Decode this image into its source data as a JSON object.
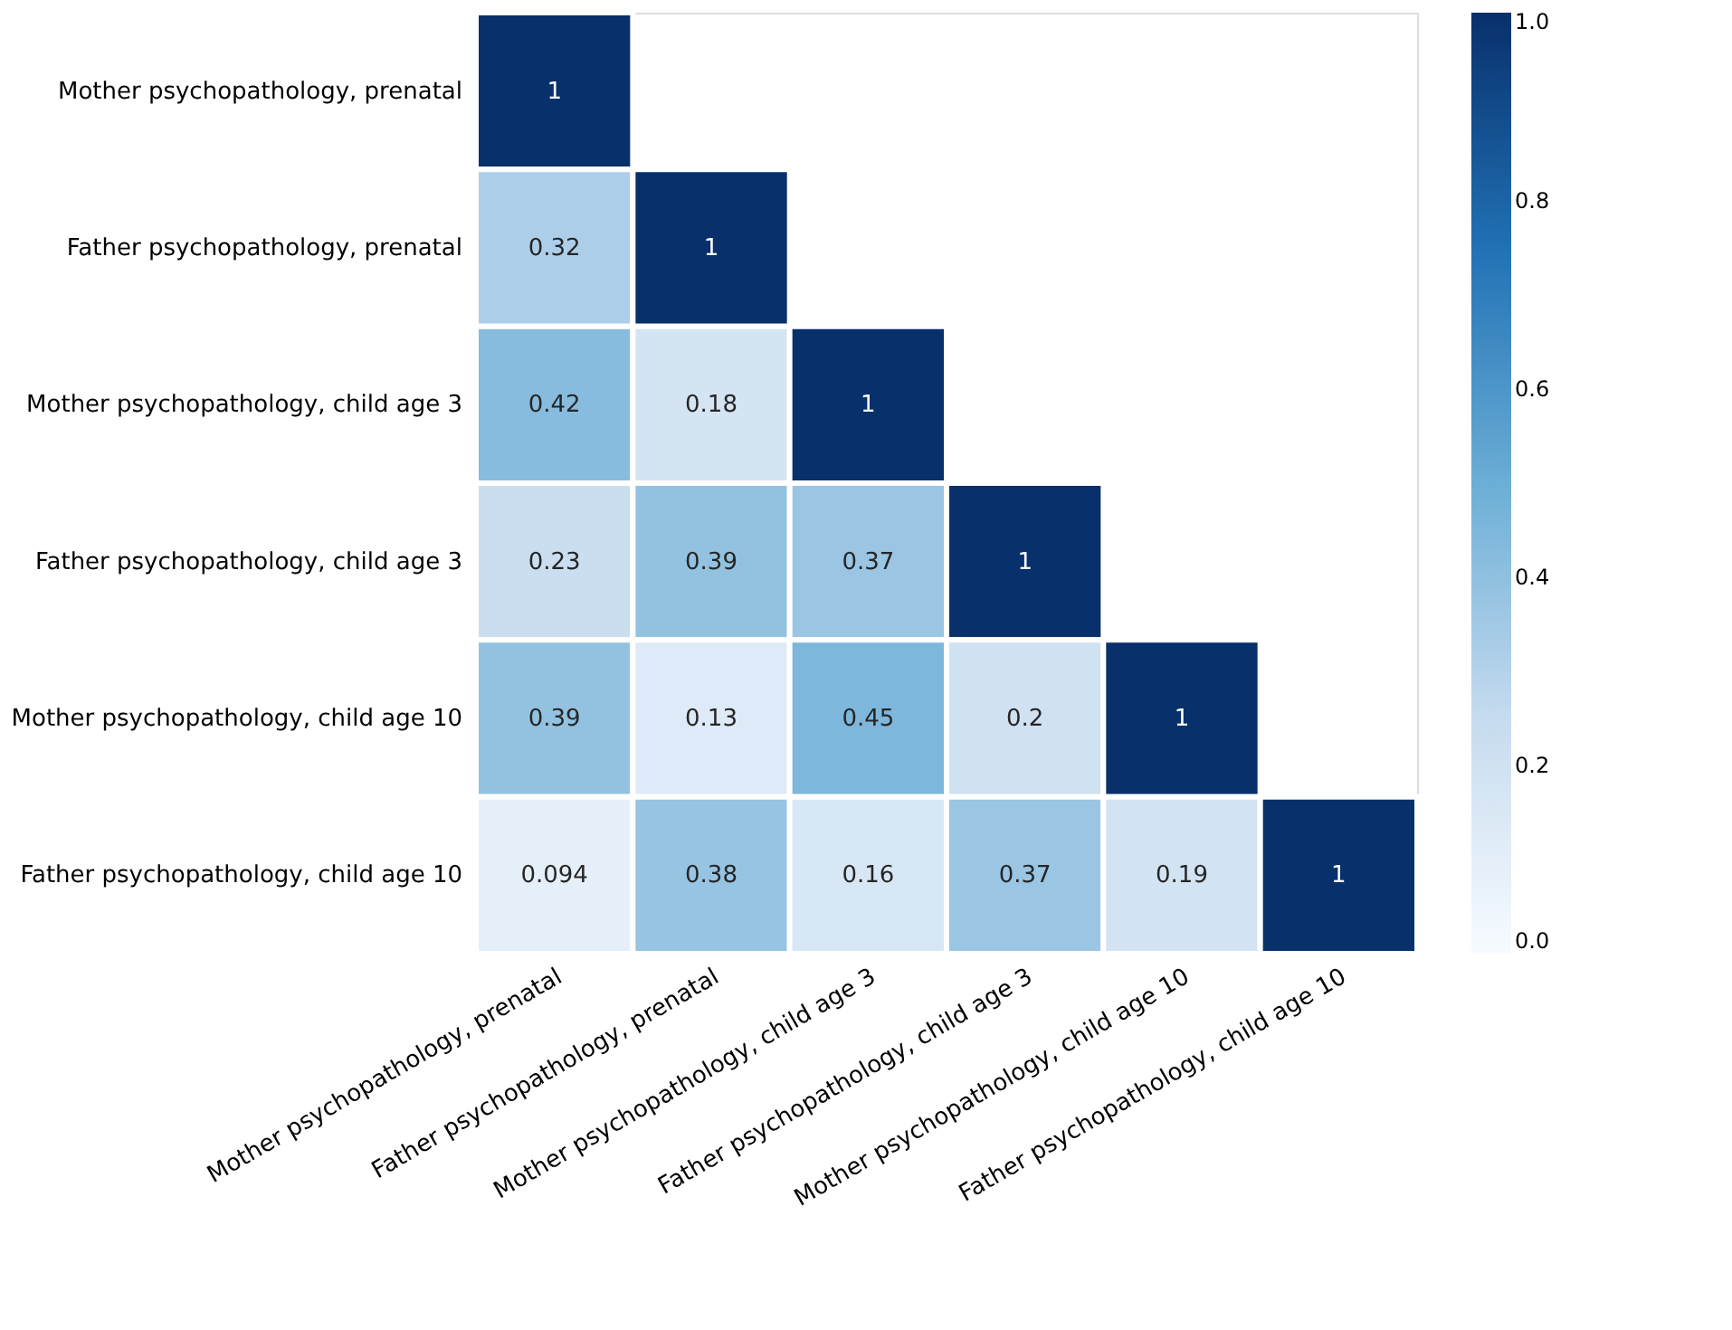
{
  "chart_data": {
    "type": "heatmap",
    "categories": [
      "Mother psychopathology, prenatal",
      "Father psychopathology, prenatal",
      "Mother psychopathology, child age 3",
      "Father psychopathology, child age 3",
      "Mother psychopathology, child age 10",
      "Father psychopathology, child age 10"
    ],
    "y_categories": [
      "Mother psychopathology, prenatal",
      "Father psychopathology, prenatal",
      "Mother psychopathology, child age 3",
      "Father psychopathology, child age 3",
      "Mother psychopathology, child age 10",
      "Father psychopathology, child age 10"
    ],
    "cells": [
      [
        1,
        null,
        null,
        null,
        null,
        null
      ],
      [
        0.32,
        1,
        null,
        null,
        null,
        null
      ],
      [
        0.42,
        0.18,
        1,
        null,
        null,
        null
      ],
      [
        0.23,
        0.39,
        0.37,
        1,
        null,
        null
      ],
      [
        0.39,
        0.13,
        0.45,
        0.2,
        1,
        null
      ],
      [
        0.094,
        0.38,
        0.16,
        0.37,
        0.19,
        1
      ]
    ],
    "data_labels": true,
    "clim": [
      0,
      1
    ],
    "cticks": [
      {
        "value": 0,
        "label": "0.0"
      },
      {
        "value": 0.2,
        "label": "0.2"
      },
      {
        "value": 0.4,
        "label": "0.4"
      },
      {
        "value": 0.6,
        "label": "0.6"
      },
      {
        "value": 0.8,
        "label": "0.8"
      },
      {
        "value": 1,
        "label": "1.0"
      }
    ]
  }
}
